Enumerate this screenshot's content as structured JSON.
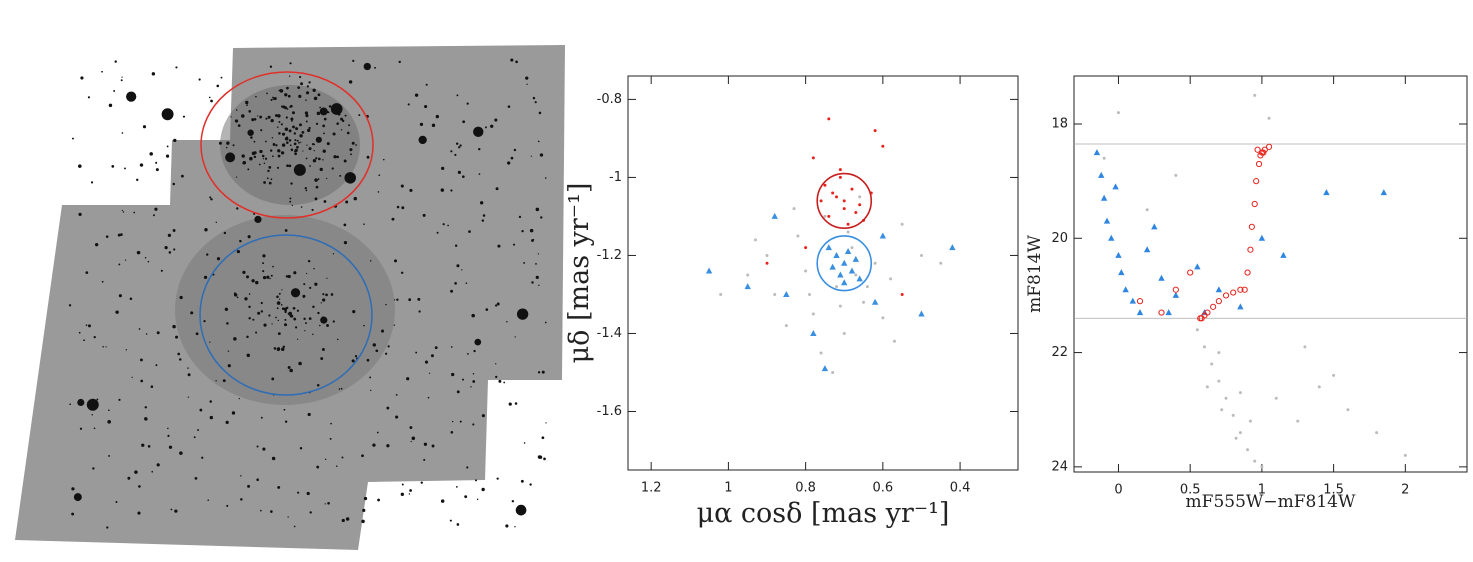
{
  "chart_data": [
    {
      "type": "scatter",
      "xlabel": "μα cosδ [mas yr⁻¹]",
      "ylabel": "μδ [mas yr⁻¹]",
      "xlim": [
        1.26,
        0.25
      ],
      "ylim": [
        -1.75,
        -0.74
      ],
      "xticks": [
        1.2,
        1,
        0.8,
        0.6,
        0.4
      ],
      "yticks": [
        -1.6,
        -1.4,
        -1.2,
        -1,
        -0.8
      ],
      "series": [
        {
          "color": "#bbbbbb",
          "marker": "dot",
          "x": [
            0.95,
            0.88,
            0.82,
            0.78,
            0.75,
            0.72,
            0.7,
            0.68,
            0.65,
            0.62,
            0.58,
            0.55,
            0.5,
            0.85,
            0.8,
            0.66,
            0.6,
            0.9,
            0.76,
            0.64,
            1.02,
            0.45,
            0.73,
            0.69,
            0.83,
            0.57,
            0.79,
            0.71,
            0.67,
            0.93
          ],
          "values": [
            -1.25,
            -1.3,
            -1.15,
            -1.35,
            -1.1,
            -1.28,
            -1.4,
            -1.18,
            -1.32,
            -1.22,
            -1.26,
            -1.12,
            -1.2,
            -1.38,
            -1.24,
            -1.05,
            -1.36,
            -1.2,
            -1.45,
            -1.28,
            -1.3,
            -1.22,
            -1.5,
            -1.14,
            -1.08,
            -1.42,
            -1.3,
            -1.33,
            -1.25,
            -1.16
          ]
        },
        {
          "color": "#e8231d",
          "marker": "dot",
          "x": [
            0.72,
            0.7,
            0.68,
            0.74,
            0.66,
            0.71,
            0.69,
            0.73,
            0.67,
            0.75,
            0.7,
            0.65,
            0.76,
            0.71,
            0.63,
            0.78,
            0.62,
            0.74,
            0.9,
            0.55,
            0.8,
            0.6
          ],
          "values": [
            -1.05,
            -1.08,
            -1.03,
            -1.1,
            -1.07,
            -1.0,
            -1.12,
            -1.04,
            -1.09,
            -1.02,
            -1.06,
            -1.11,
            -1.06,
            -0.98,
            -1.04,
            -0.95,
            -0.88,
            -0.85,
            -1.22,
            -1.3,
            -1.18,
            -0.92
          ]
        },
        {
          "color": "#3a8fe0",
          "marker": "triangle",
          "x": [
            0.7,
            0.72,
            0.68,
            0.71,
            0.69,
            0.73,
            0.67,
            0.7,
            0.74,
            0.66,
            0.85,
            0.6,
            0.95,
            1.05,
            0.5,
            0.78,
            0.62,
            0.88,
            0.42,
            0.75
          ],
          "values": [
            -1.22,
            -1.2,
            -1.24,
            -1.25,
            -1.19,
            -1.23,
            -1.21,
            -1.27,
            -1.18,
            -1.26,
            -1.3,
            -1.15,
            -1.28,
            -1.24,
            -1.35,
            -1.4,
            -1.32,
            -1.1,
            -1.18,
            -1.49
          ]
        }
      ],
      "regions": [
        {
          "color": "#c81e1e",
          "center": [
            0.7,
            -1.06
          ],
          "radius": 0.07
        },
        {
          "color": "#3a8fe0",
          "center": [
            0.7,
            -1.22
          ],
          "radius": 0.07
        }
      ]
    },
    {
      "type": "scatter",
      "xlabel": "mF555W−mF814W",
      "ylabel": "mF814W",
      "xlim": [
        -0.31,
        2.43
      ],
      "ylim": [
        24.09,
        17.16
      ],
      "xticks": [
        0,
        0.5,
        1,
        1.5,
        2
      ],
      "yticks": [
        18,
        20,
        22,
        24
      ],
      "hlines": [
        18.35,
        21.4
      ],
      "series": [
        {
          "color": "#bbbbbb",
          "marker": "dot",
          "x": [
            0.55,
            0.6,
            0.65,
            0.7,
            0.75,
            0.8,
            0.85,
            0.9,
            0.95,
            1.0,
            0.62,
            0.72,
            0.82,
            0.92,
            1.1,
            1.25,
            1.4,
            1.6,
            1.8,
            2.0,
            1.3,
            1.5,
            0.0,
            -0.1,
            0.2,
            0.4,
            0.95,
            1.05,
            0.7,
            0.85
          ],
          "values": [
            21.6,
            21.9,
            22.2,
            22.5,
            22.8,
            23.1,
            23.4,
            23.7,
            23.9,
            24.0,
            22.6,
            23.0,
            23.5,
            23.2,
            22.8,
            23.2,
            22.6,
            23.0,
            23.4,
            23.8,
            21.9,
            22.4,
            17.8,
            18.6,
            19.5,
            18.9,
            17.5,
            17.9,
            22.0,
            22.7
          ]
        },
        {
          "color": "#2f86e0",
          "marker": "triangle",
          "x": [
            -0.15,
            -0.12,
            -0.1,
            -0.08,
            -0.05,
            0.0,
            0.02,
            0.05,
            0.1,
            0.15,
            0.2,
            0.3,
            0.4,
            0.55,
            0.7,
            0.85,
            1.0,
            1.15,
            1.45,
            1.85,
            0.6,
            0.25,
            -0.02,
            0.35
          ],
          "values": [
            18.5,
            18.9,
            19.3,
            19.7,
            20.0,
            20.3,
            20.6,
            20.9,
            21.1,
            21.3,
            20.2,
            20.7,
            21.0,
            20.5,
            20.9,
            21.2,
            20.0,
            20.3,
            19.2,
            19.2,
            21.3,
            19.8,
            19.1,
            21.3
          ]
        },
        {
          "color": "#e8231d",
          "marker": "ring",
          "x": [
            0.58,
            0.62,
            0.66,
            0.7,
            0.75,
            0.8,
            0.85,
            0.88,
            0.9,
            0.92,
            0.93,
            0.95,
            0.96,
            0.98,
            1.0,
            1.02,
            1.05,
            0.99,
            1.01,
            0.97,
            0.6,
            0.57,
            0.4,
            0.15,
            0.3,
            0.5
          ],
          "values": [
            21.4,
            21.3,
            21.2,
            21.1,
            21.0,
            20.95,
            20.9,
            20.9,
            20.6,
            20.2,
            19.8,
            19.4,
            19.0,
            18.7,
            18.5,
            18.45,
            18.4,
            18.55,
            18.5,
            18.45,
            21.35,
            21.4,
            20.9,
            21.1,
            21.3,
            20.6
          ]
        }
      ]
    }
  ]
}
